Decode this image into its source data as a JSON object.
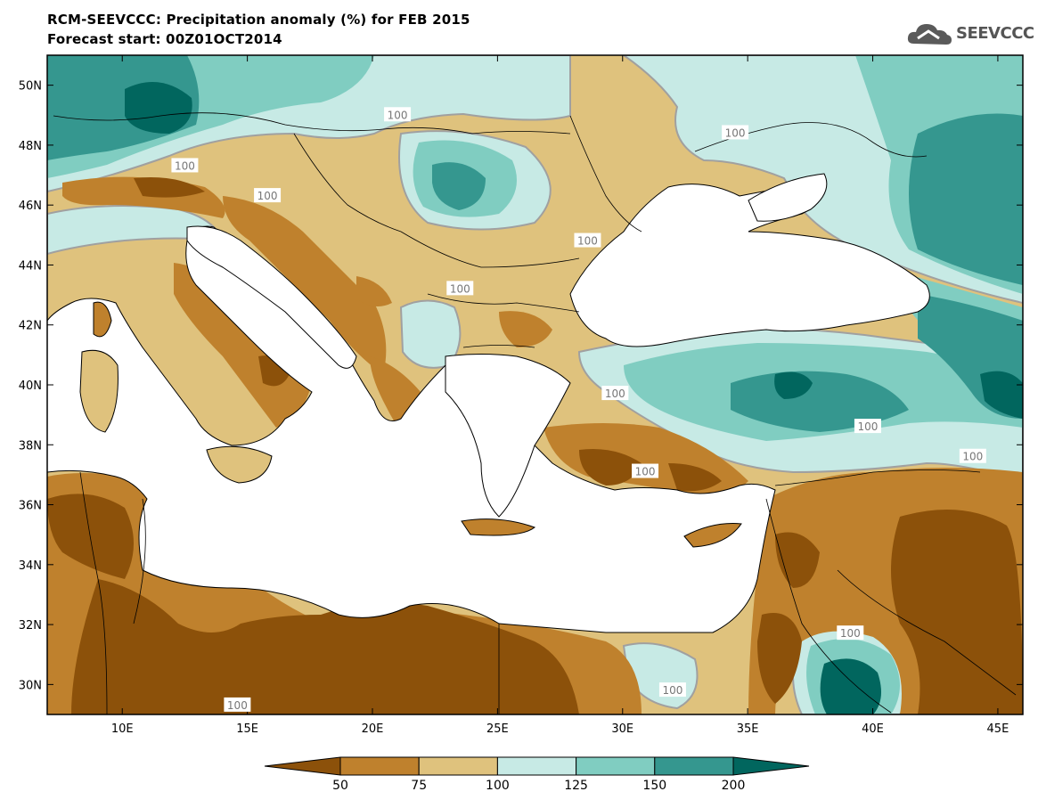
{
  "header": {
    "title": "RCM-SEEVCCC: Precipitation anomaly (%) for FEB 2015",
    "subtitle": "Forecast start: 00Z01OCT2014",
    "logo_text": "SEEVCCC",
    "logo_icon": "cloud-icon"
  },
  "map": {
    "projection": "lat-lon",
    "lon_range": [
      7,
      46
    ],
    "lat_range": [
      29,
      51
    ],
    "lon_ticks": [
      {
        "value": 10,
        "label": "10E"
      },
      {
        "value": 15,
        "label": "15E"
      },
      {
        "value": 20,
        "label": "20E"
      },
      {
        "value": 25,
        "label": "25E"
      },
      {
        "value": 30,
        "label": "30E"
      },
      {
        "value": 35,
        "label": "35E"
      },
      {
        "value": 40,
        "label": "40E"
      },
      {
        "value": 45,
        "label": "45E"
      }
    ],
    "lat_ticks": [
      {
        "value": 30,
        "label": "30N"
      },
      {
        "value": 32,
        "label": "32N"
      },
      {
        "value": 34,
        "label": "34N"
      },
      {
        "value": 36,
        "label": "36N"
      },
      {
        "value": 38,
        "label": "38N"
      },
      {
        "value": 40,
        "label": "40N"
      },
      {
        "value": 42,
        "label": "42N"
      },
      {
        "value": 44,
        "label": "44N"
      },
      {
        "value": 46,
        "label": "46N"
      },
      {
        "value": 48,
        "label": "48N"
      },
      {
        "value": 50,
        "label": "50N"
      }
    ],
    "sea_color": "#ffffff",
    "contour_labels": [
      {
        "lon": 15.8,
        "lat": 46.3,
        "label": "100"
      },
      {
        "lon": 12.5,
        "lat": 47.3,
        "label": "100"
      },
      {
        "lon": 21.0,
        "lat": 49.0,
        "label": "100"
      },
      {
        "lon": 34.5,
        "lat": 48.4,
        "label": "100"
      },
      {
        "lon": 28.6,
        "lat": 44.8,
        "label": "100"
      },
      {
        "lon": 23.5,
        "lat": 43.2,
        "label": "100"
      },
      {
        "lon": 29.7,
        "lat": 39.7,
        "label": "100"
      },
      {
        "lon": 30.9,
        "lat": 37.1,
        "label": "100"
      },
      {
        "lon": 39.8,
        "lat": 38.6,
        "label": "100"
      },
      {
        "lon": 44.0,
        "lat": 37.6,
        "label": "100"
      },
      {
        "lon": 39.1,
        "lat": 31.7,
        "label": "100"
      },
      {
        "lon": 32.0,
        "lat": 29.8,
        "label": "100"
      },
      {
        "lon": 14.6,
        "lat": 29.3,
        "label": "100"
      }
    ]
  },
  "colorbar": {
    "levels": [
      "50",
      "75",
      "100",
      "125",
      "150",
      "200"
    ],
    "colors": [
      "#8c510a",
      "#bf812d",
      "#dfc27d",
      "#c7eae5",
      "#80cdc1",
      "#35978f",
      "#01665e"
    ],
    "contour_line_color": "#a0a0a0"
  }
}
